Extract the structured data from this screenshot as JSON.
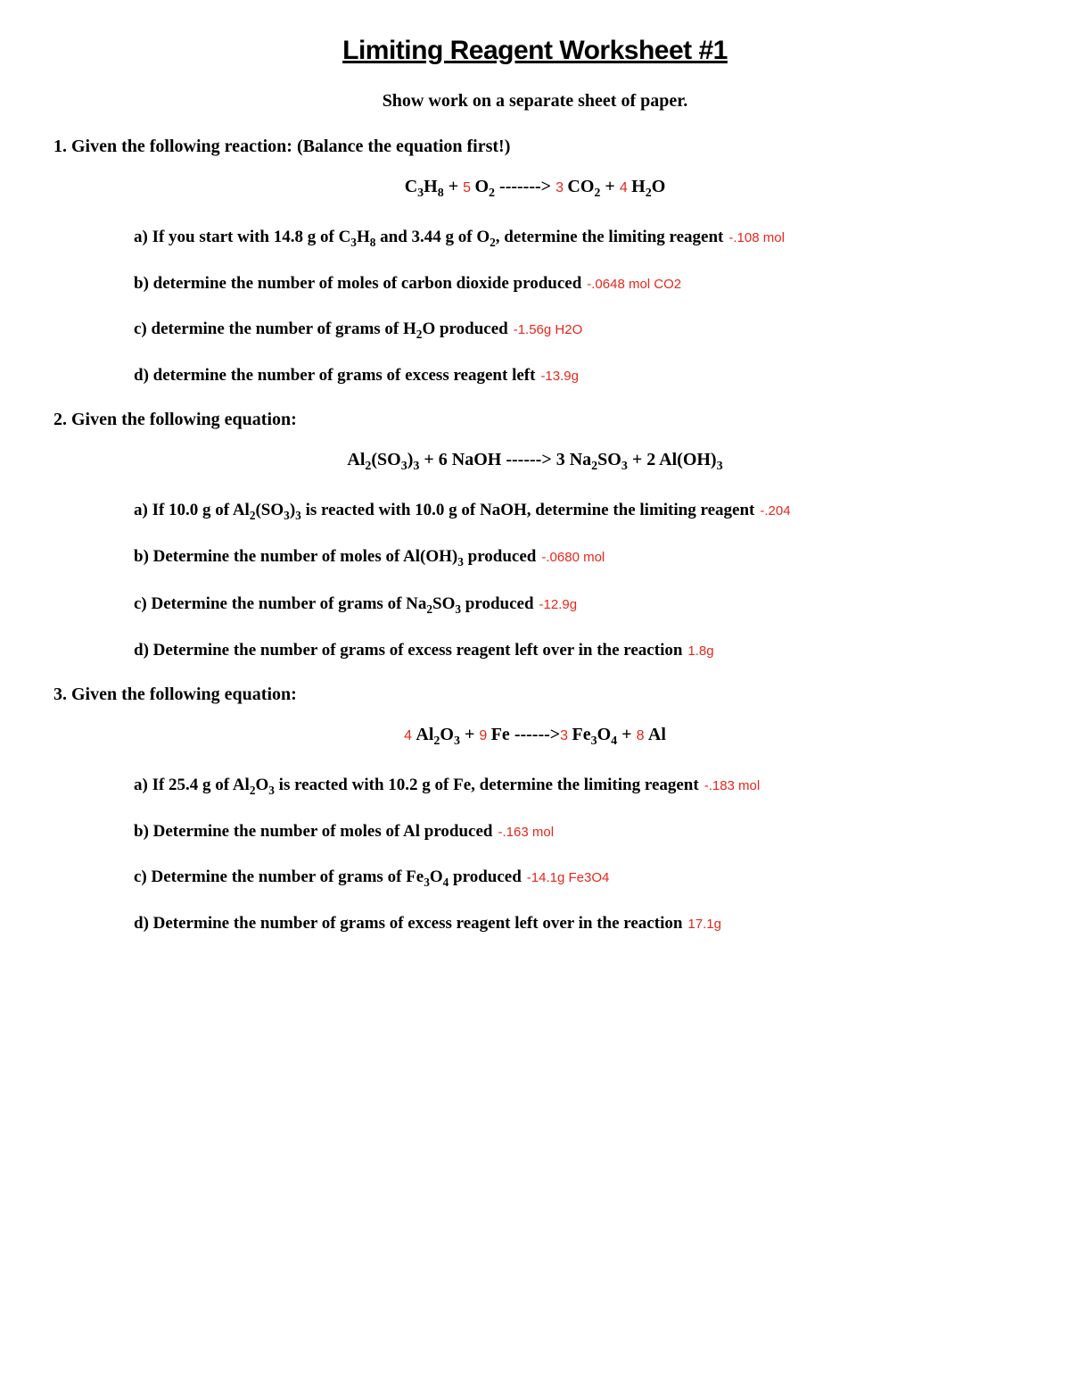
{
  "title": "Limiting Reagent Worksheet #1",
  "subtitle": "Show work on a separate sheet of paper.",
  "colors": {
    "answer": "#e7261c",
    "text": "#000000",
    "background": "#ffffff"
  },
  "q1": {
    "header": "1. Given the following reaction:   (Balance the equation first!)",
    "eq": {
      "r1": "C",
      "r1s1": "3",
      "r1b": "H",
      "r1s2": "8",
      "plus1": "    +  ",
      "c1": "5 ",
      "r2": "O",
      "r2s": "2",
      "arrow": "    ------->  ",
      "c2": "3 ",
      "p1": "CO",
      "p1s": "2",
      "plus2": "     +  ",
      "c3": "4 ",
      "p2": "H",
      "p2s": "2",
      "p2b": "O"
    },
    "a": {
      "text": "a) If you start with 14.8 g of C",
      "s1": "3",
      "mid": "H",
      "s2": "8",
      "mid2": " and 3.44 g of O",
      "s3": "2",
      "end": ", determine the limiting reagent",
      "ans": "-.108 mol"
    },
    "b": {
      "text": "b)  determine the number of moles of carbon dioxide produced",
      "ans": "-.0648 mol CO2"
    },
    "c": {
      "text": "c)  determine the number of grams of H",
      "s": "2",
      "end": "O produced",
      "ans": "-1.56g H2O"
    },
    "d": {
      "text": "d)  determine the number of grams of excess reagent left",
      "ans": "-13.9g"
    }
  },
  "q2": {
    "header": "2. Given the following equation:",
    "eq_full": "Al",
    "eq": {
      "t1": "Al",
      "s1": "2",
      "t2": "(SO",
      "s2": "3",
      "t3": ")",
      "s3": "3",
      "plus1": "   +  6 NaOH  ------> 3 Na",
      "s4": "2",
      "t4": "SO",
      "s5": "3",
      "plus2": "    +  2 Al(OH)",
      "s6": "3"
    },
    "a": {
      "text": "a) If 10.0 g of Al",
      "s1": "2",
      "mid1": "(SO",
      "s2": "3",
      "mid2": ")",
      "s3": "3",
      "end": " is reacted with 10.0 g of NaOH, determine the  limiting reagent",
      "ans": "-.204"
    },
    "b": {
      "text": "b)   Determine the number of moles of Al(OH)",
      "s": "3",
      "end": " produced",
      "ans": "-.0680 mol"
    },
    "c": {
      "text": "c)   Determine the number of grams of Na",
      "s1": "2",
      "mid": "SO",
      "s2": "3",
      "end": " produced",
      "ans": "-12.9g"
    },
    "d": {
      "text": "d)   Determine the number of grams of excess reagent left over in the reaction",
      "ans": "1.8g"
    }
  },
  "q3": {
    "header": "3. Given the following equation:",
    "eq": {
      "c1": "4 ",
      "t1": "Al",
      "s1": "2",
      "t2": "O",
      "s2": "3",
      "plus1": "    + ",
      "c2": "9 ",
      "t3": "Fe  ------>",
      "c3": "3 ",
      "t4": "Fe",
      "s3": "3",
      "t5": "O",
      "s4": "4",
      "plus2": "    +  ",
      "c4": "8 ",
      "t6": "Al"
    },
    "a": {
      "text": "a)   If 25.4 g of Al",
      "s1": "2",
      "mid": "O",
      "s2": "3",
      "end": " is reacted with 10.2 g of Fe, determine the limiting reagent",
      "ans": "-.183 mol"
    },
    "b": {
      "text": "b)   Determine the number of moles of Al produced",
      "ans": "-.163 mol"
    },
    "c": {
      "text": "c)   Determine the number of grams of Fe",
      "s1": "3",
      "mid": "O",
      "s2": "4",
      "end": " produced",
      "ans": "-14.1g Fe3O4"
    },
    "d": {
      "text": "d)   Determine the number of grams of excess reagent left over in the reaction",
      "ans": "17.1g"
    }
  }
}
